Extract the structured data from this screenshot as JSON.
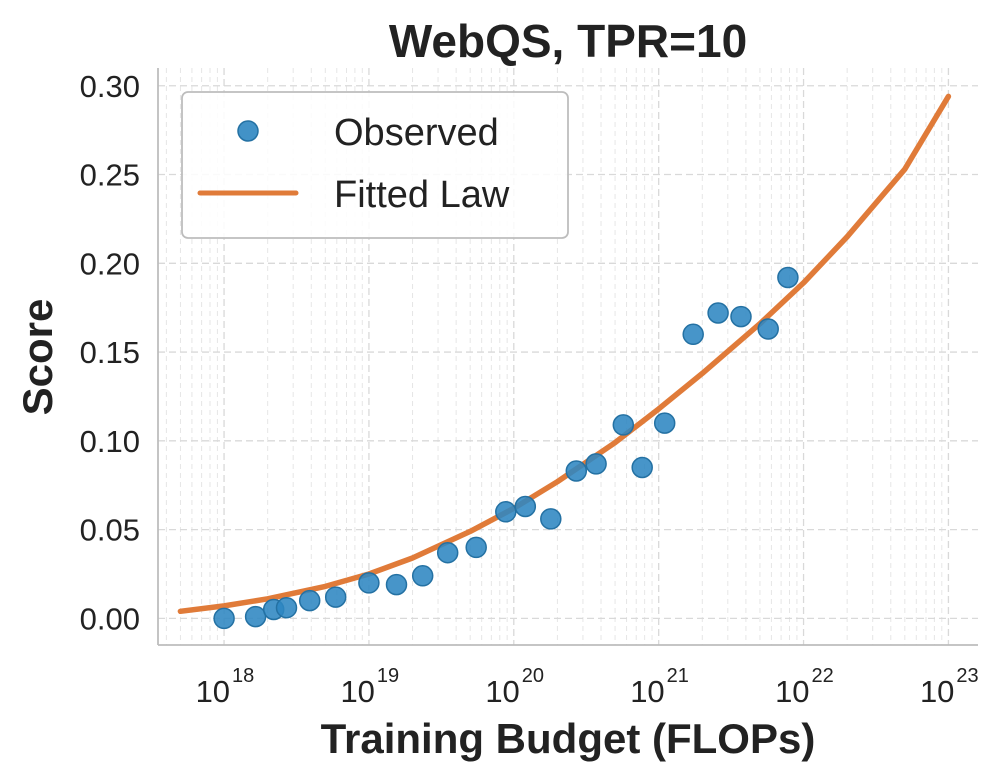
{
  "chart_data": {
    "type": "scatter",
    "title": "WebQS, TPR=10",
    "xlabel": "Training Budget (FLOPs)",
    "ylabel": "Score",
    "xscale": "log",
    "xlim": [
      3.5e+17,
      1.6e+23
    ],
    "ylim": [
      -0.015,
      0.31
    ],
    "grid": true,
    "legend_position": "top-left",
    "x_ticks": [
      {
        "base": "10",
        "exp": "18",
        "value": 1e+18
      },
      {
        "base": "10",
        "exp": "19",
        "value": 1e+19
      },
      {
        "base": "10",
        "exp": "20",
        "value": 1e+20
      },
      {
        "base": "10",
        "exp": "21",
        "value": 1e+21
      },
      {
        "base": "10",
        "exp": "22",
        "value": 1e+22
      },
      {
        "base": "10",
        "exp": "23",
        "value": 1e+23
      }
    ],
    "y_ticks": [
      {
        "label": "0.00",
        "value": 0.0
      },
      {
        "label": "0.05",
        "value": 0.05
      },
      {
        "label": "0.10",
        "value": 0.1
      },
      {
        "label": "0.15",
        "value": 0.15
      },
      {
        "label": "0.20",
        "value": 0.2
      },
      {
        "label": "0.25",
        "value": 0.25
      },
      {
        "label": "0.30",
        "value": 0.3
      }
    ],
    "series": [
      {
        "name": "Observed",
        "kind": "scatter",
        "color": "#2e86c1",
        "x": [
          1e+18,
          1.65e+18,
          2.2e+18,
          2.7e+18,
          3.9e+18,
          5.9e+18,
          1e+19,
          1.55e+19,
          2.35e+19,
          3.5e+19,
          5.5e+19,
          8.8e+19,
          1.2e+20,
          1.8e+20,
          2.7e+20,
          3.7e+20,
          5.7e+20,
          7.7e+20,
          1.1e+21,
          1.73e+21,
          2.57e+21,
          3.7e+21,
          5.7e+21,
          7.8e+21
        ],
        "y": [
          0.0,
          0.001,
          0.005,
          0.006,
          0.01,
          0.012,
          0.02,
          0.019,
          0.024,
          0.037,
          0.04,
          0.06,
          0.063,
          0.056,
          0.083,
          0.087,
          0.109,
          0.085,
          0.11,
          0.16,
          0.172,
          0.17,
          0.163,
          0.192
        ]
      },
      {
        "name": "Fitted Law",
        "kind": "line",
        "color": "#e07b39",
        "x": [
          5e+17,
          1e+18,
          2e+18,
          5e+18,
          1e+19,
          2e+19,
          5e+19,
          1e+20,
          2e+20,
          5e+20,
          1e+21,
          2e+21,
          5e+21,
          1e+22,
          2e+22,
          5e+22,
          1e+23
        ],
        "y": [
          0.004,
          0.007,
          0.011,
          0.018,
          0.025,
          0.034,
          0.049,
          0.062,
          0.077,
          0.099,
          0.118,
          0.138,
          0.166,
          0.189,
          0.215,
          0.253,
          0.294
        ]
      }
    ]
  }
}
